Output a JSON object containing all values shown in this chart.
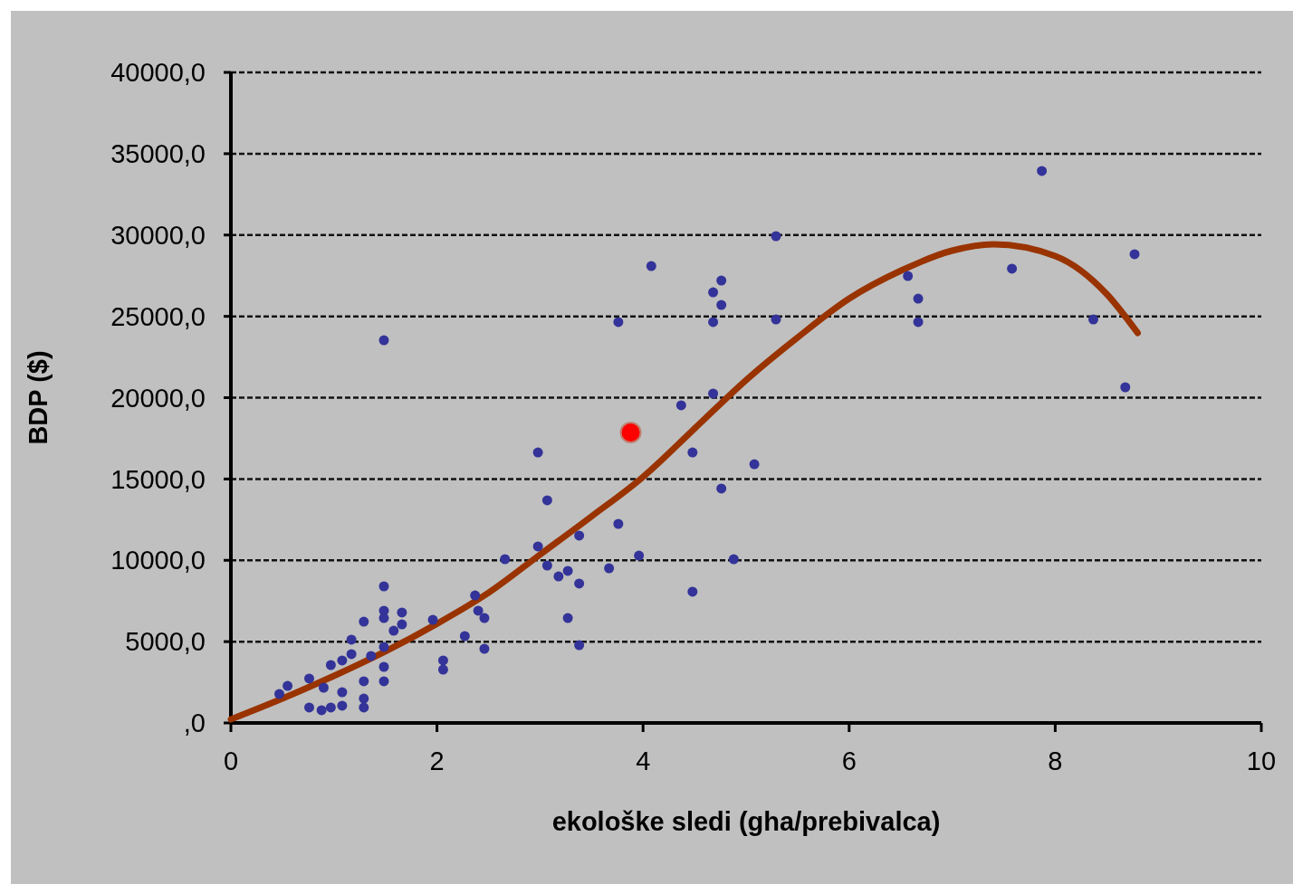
{
  "chart_data": {
    "type": "scatter",
    "xlabel": "ekološke sledi (gha/prebivalca)",
    "ylabel": "BDP ($)",
    "xlim": [
      0,
      10
    ],
    "ylim": [
      0,
      40000
    ],
    "xticks": [
      0,
      2,
      4,
      6,
      8,
      10
    ],
    "yticks": [
      {
        "value": 0,
        "label": ",0"
      },
      {
        "value": 5000,
        "label": "5000,0"
      },
      {
        "value": 10000,
        "label": "10000,0"
      },
      {
        "value": 15000,
        "label": "15000,0"
      },
      {
        "value": 20000,
        "label": "20000,0"
      },
      {
        "value": 25000,
        "label": "25000,0"
      },
      {
        "value": 30000,
        "label": "30000,0"
      },
      {
        "value": 35000,
        "label": "35000,0"
      },
      {
        "value": 40000,
        "label": "40000,0"
      }
    ],
    "grid": "y",
    "marker": "circle",
    "series": [
      {
        "color": "#333399",
        "x": [
          1.485,
          1.485,
          1.485,
          1.66,
          1.66,
          1.58,
          1.29,
          1.17,
          1.17,
          1.08,
          0.97,
          1.36,
          1.485,
          1.485,
          1.485,
          1.29,
          1.29,
          1.29,
          1.08,
          1.08,
          0.97,
          0.88,
          0.76,
          0.76,
          0.55,
          0.47,
          0.9,
          1.96,
          2.06,
          2.06,
          2.27,
          2.37,
          2.46,
          2.46,
          2.4,
          2.66,
          2.98,
          4.48,
          5.08,
          4.76,
          3.07,
          3.76,
          3.38,
          2.98,
          3.07,
          3.27,
          3.18,
          3.38,
          3.67,
          3.96,
          4.88,
          4.48,
          3.27,
          3.38,
          1.485,
          3.76,
          4.08,
          4.76,
          4.68,
          4.76,
          4.68,
          5.29,
          5.29,
          4.68,
          4.37,
          7.87,
          8.77,
          7.58,
          6.57,
          6.67,
          6.67,
          8.37,
          8.68
        ],
        "values": [
          8400,
          6900,
          6450,
          6790,
          6060,
          5670,
          6230,
          5120,
          4230,
          3840,
          3560,
          4120,
          4670,
          3450,
          2560,
          2560,
          1500,
          950,
          1890,
          1060,
          950,
          780,
          2730,
          950,
          2280,
          1780,
          2170,
          6340,
          3840,
          3280,
          5340,
          7840,
          6450,
          4560,
          6900,
          10070,
          16630,
          16630,
          15910,
          14410,
          13690,
          12240,
          11520,
          10850,
          9680,
          9350,
          9010,
          8570,
          9510,
          10290,
          10070,
          8070,
          6450,
          4780,
          23530,
          24650,
          28090,
          27200,
          26480,
          25700,
          24650,
          29930,
          24810,
          20250,
          19530,
          33940,
          28820,
          27930,
          27480,
          26090,
          24650,
          24810,
          20640
        ]
      },
      {
        "color": "#ff0000",
        "x": [
          3.88
        ],
        "values": [
          17860
        ]
      },
      {
        "type": "line",
        "color": "#993300",
        "marker": "none",
        "line_style": "solid",
        "x": [
          0,
          0.5,
          1,
          1.5,
          2,
          2.5,
          3,
          3.5,
          4,
          4.5,
          5,
          5.5,
          6,
          6.5,
          7,
          7.4,
          8,
          8.5,
          8.8
        ],
        "values": [
          220,
          1500,
          2890,
          4400,
          6100,
          8000,
          10350,
          12700,
          15130,
          18100,
          21080,
          23700,
          26090,
          27800,
          29040,
          29430,
          28710,
          26370,
          23980
        ]
      }
    ]
  }
}
